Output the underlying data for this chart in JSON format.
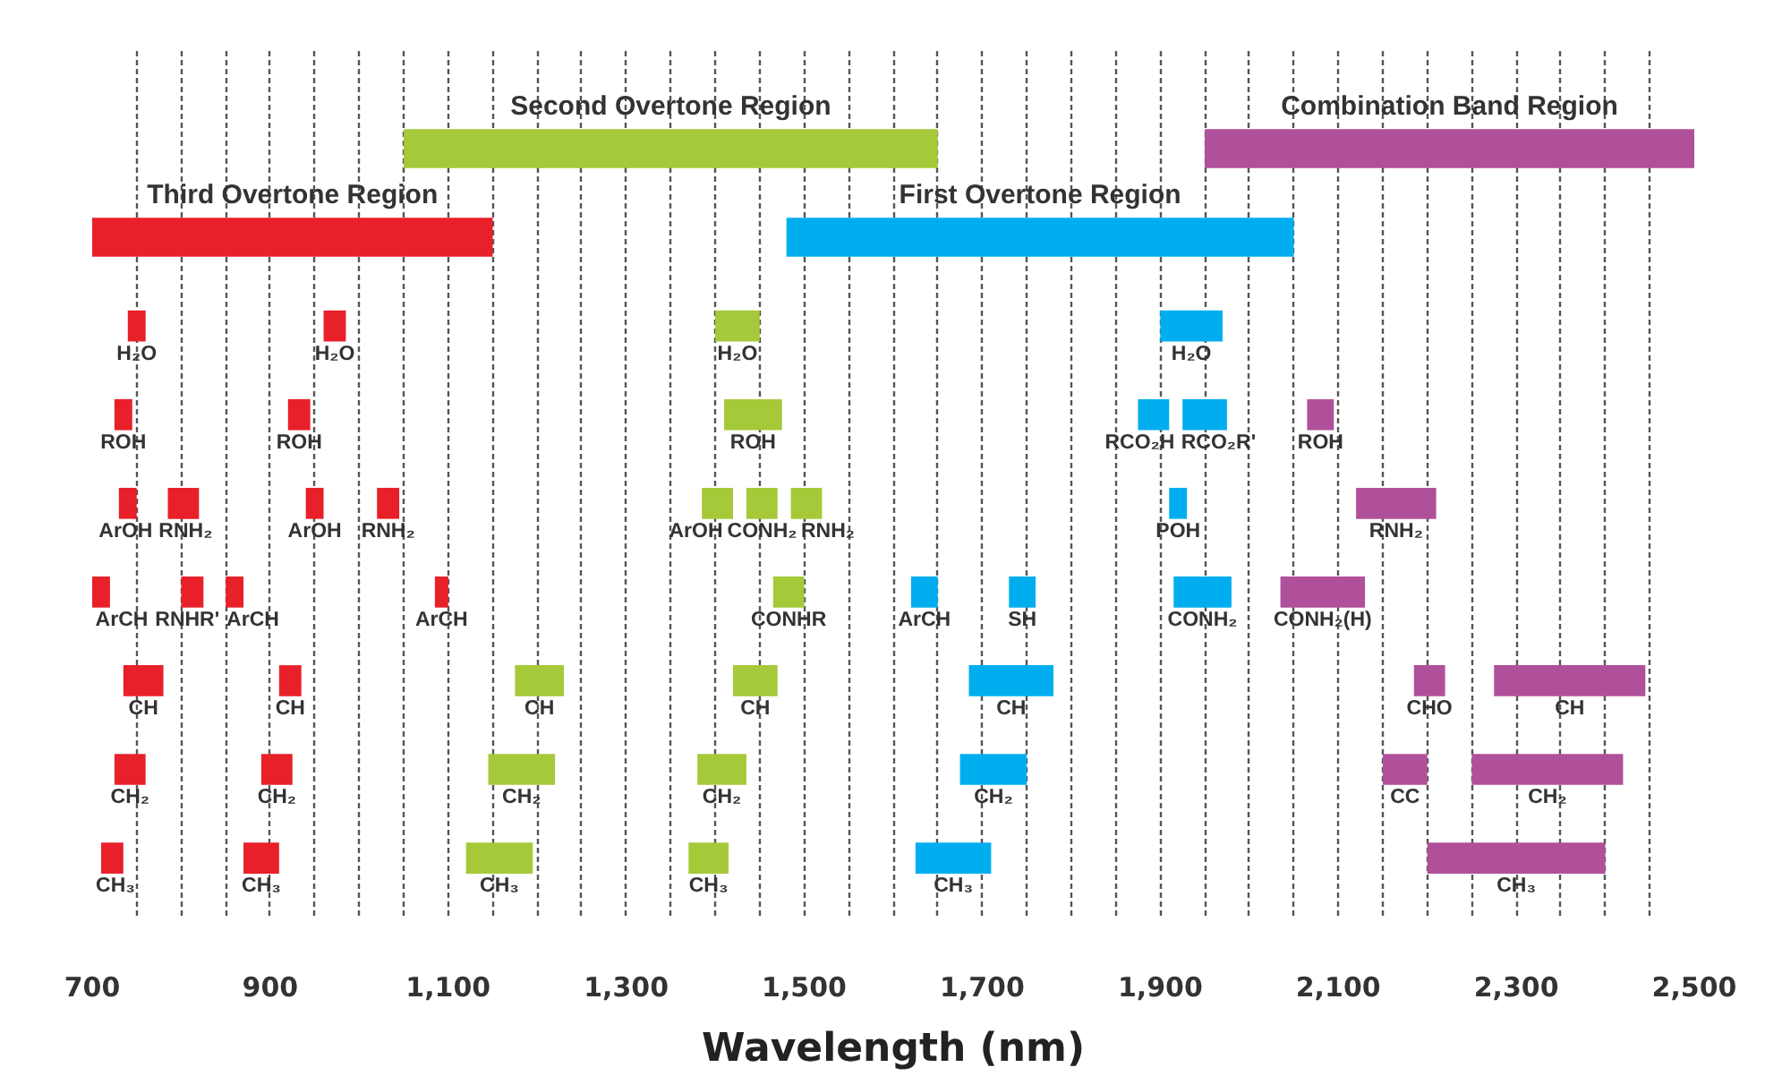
{
  "chart_data": {
    "type": "bar",
    "orientation": "horizontal",
    "xlabel": "Wavelength (nm)",
    "categories": [
      null,
      null,
      null,
      null,
      null,
      null,
      null,
      null,
      null
    ],
    "xlim": [
      700,
      2500
    ],
    "xticks": [
      700,
      {
        "value": 750,
        "label": null
      },
      {
        "value": 800,
        "label": null
      },
      {
        "value": 850,
        "label": null
      },
      900,
      {
        "value": 950,
        "label": null
      },
      {
        "value": 1000,
        "label": null
      },
      {
        "value": 1050,
        "label": null
      },
      {
        "value": 1100,
        "label": "1,100"
      },
      {
        "value": 1150,
        "label": null
      },
      {
        "value": 1200,
        "label": null
      },
      {
        "value": 1250,
        "label": null
      },
      {
        "value": 1300,
        "label": "1,300"
      },
      {
        "value": 1350,
        "label": null
      },
      {
        "value": 1400,
        "label": null
      },
      {
        "value": 1450,
        "label": null
      },
      {
        "value": 1500,
        "label": "1,500"
      },
      {
        "value": 1550,
        "label": null
      },
      {
        "value": 1600,
        "label": null
      },
      {
        "value": 1650,
        "label": null
      },
      {
        "value": 1700,
        "label": "1,700"
      },
      {
        "value": 1750,
        "label": null
      },
      {
        "value": 1800,
        "label": null
      },
      {
        "value": 1850,
        "label": null
      },
      {
        "value": 1900,
        "label": "1,900"
      },
      {
        "value": 1950,
        "label": null
      },
      {
        "value": 2000,
        "label": null
      },
      {
        "value": 2050,
        "label": null
      },
      {
        "value": 2100,
        "label": "2,100"
      },
      {
        "value": 2150,
        "label": null
      },
      {
        "value": 2200,
        "label": null
      },
      {
        "value": 2250,
        "label": null
      },
      {
        "value": 2300,
        "label": "2,300"
      },
      {
        "value": 2350,
        "label": null
      },
      {
        "value": 2400,
        "label": null
      },
      {
        "value": 2450,
        "label": null
      },
      {
        "value": 2500,
        "label": "2,500"
      }
    ],
    "grid": "x",
    "series": [
      {
        "color": "#e8202a",
        "base": [
          null,
          700,
          740,
          725,
          730,
          700,
          735,
          725,
          710
        ],
        "values": [
          null,
          450,
          20,
          20,
          20,
          20,
          45,
          35,
          25
        ],
        "value_labels": [
          null,
          "Third Overtone Region",
          "H₂O",
          "ROH",
          "ArOH",
          "ArCH",
          "CH",
          "CH₂",
          "CH₃"
        ]
      },
      {
        "color": "#e8202a",
        "base": [
          null,
          null,
          960,
          920,
          785,
          800,
          910,
          890,
          870
        ],
        "values": [
          null,
          null,
          25,
          25,
          35,
          25,
          25,
          35,
          40
        ],
        "value_labels": [
          null,
          null,
          "H₂O",
          "ROH",
          "RNH₂",
          "RNHR'",
          "CH",
          "CH₂",
          "CH₃"
        ]
      },
      {
        "color": "#e8202a",
        "base": [
          null,
          null,
          null,
          null,
          940,
          850,
          null,
          null,
          null
        ],
        "values": [
          null,
          null,
          null,
          null,
          20,
          20,
          null,
          null,
          null
        ],
        "value_labels": [
          null,
          null,
          null,
          null,
          "ArOH",
          "ArCH",
          null,
          null,
          null
        ]
      },
      {
        "color": "#e8202a",
        "base": [
          null,
          null,
          null,
          null,
          1020,
          1085,
          null,
          null,
          null
        ],
        "values": [
          null,
          null,
          null,
          null,
          25,
          15,
          null,
          null,
          null
        ],
        "value_labels": [
          null,
          null,
          null,
          null,
          "RNH₂",
          "ArCH",
          null,
          null,
          null
        ]
      },
      {
        "color": "#a6c939",
        "base": [
          1050,
          null,
          1400,
          1410,
          1385,
          1465,
          1175,
          1145,
          1120
        ],
        "values": [
          600,
          null,
          50,
          65,
          35,
          35,
          55,
          75,
          75
        ],
        "value_labels": [
          "Second Overtone Region",
          null,
          "H₂O",
          "ROH",
          "ArOH",
          "CONHR",
          "CH",
          "CH₂",
          "CH₃"
        ]
      },
      {
        "color": "#a6c939",
        "base": [
          null,
          null,
          null,
          null,
          1435,
          null,
          1420,
          1380,
          1370
        ],
        "values": [
          null,
          null,
          null,
          null,
          35,
          null,
          50,
          55,
          45
        ],
        "value_labels": [
          null,
          null,
          null,
          null,
          "CONH₂",
          null,
          "CH",
          "CH₂",
          "CH₃"
        ]
      },
      {
        "color": "#a6c939",
        "base": [
          null,
          null,
          null,
          null,
          1485,
          null,
          null,
          null,
          null
        ],
        "values": [
          null,
          null,
          null,
          null,
          35,
          null,
          null,
          null,
          null
        ],
        "value_labels": [
          null,
          null,
          null,
          null,
          "RNH₂",
          null,
          null,
          null,
          null
        ]
      },
      {
        "color": "#00aeef",
        "base": [
          null,
          1480,
          1900,
          1875,
          1910,
          1620,
          1685,
          1675,
          1625
        ],
        "values": [
          null,
          570,
          70,
          35,
          20,
          30,
          95,
          75,
          85
        ],
        "value_labels": [
          null,
          "First Overtone Region",
          "H₂O",
          "RCO₂H",
          "POH",
          "ArCH",
          "CH",
          "CH₂",
          "CH₃"
        ]
      },
      {
        "color": "#00aeef",
        "base": [
          null,
          null,
          null,
          1925,
          null,
          1730,
          null,
          null,
          null
        ],
        "values": [
          null,
          null,
          null,
          50,
          null,
          30,
          null,
          null,
          null
        ],
        "value_labels": [
          null,
          null,
          null,
          "RCO₂R'",
          null,
          "SH",
          null,
          null,
          null
        ]
      },
      {
        "color": "#00aeef",
        "base": [
          null,
          null,
          null,
          null,
          null,
          1915,
          null,
          null,
          null
        ],
        "values": [
          null,
          null,
          null,
          null,
          null,
          65,
          null,
          null,
          null
        ],
        "value_labels": [
          null,
          null,
          null,
          null,
          null,
          "CONH₂",
          null,
          null,
          null
        ]
      },
      {
        "color": "#b0509b",
        "base": [
          1950,
          null,
          null,
          2065,
          2120,
          2035,
          2185,
          2150,
          2200
        ],
        "values": [
          550,
          null,
          null,
          30,
          90,
          95,
          35,
          50,
          200
        ],
        "value_labels": [
          "Combination Band Region",
          null,
          null,
          "ROH",
          "RNH₂",
          "CONH₂(H)",
          "CHO",
          "CC",
          "CH₃"
        ]
      },
      {
        "color": "#b0509b",
        "base": [
          null,
          null,
          null,
          null,
          null,
          null,
          2275,
          2250,
          null
        ],
        "values": [
          null,
          null,
          null,
          null,
          null,
          null,
          170,
          170,
          null
        ],
        "value_labels": [
          null,
          null,
          null,
          null,
          null,
          null,
          "CH",
          "CH₂",
          null
        ]
      }
    ]
  }
}
